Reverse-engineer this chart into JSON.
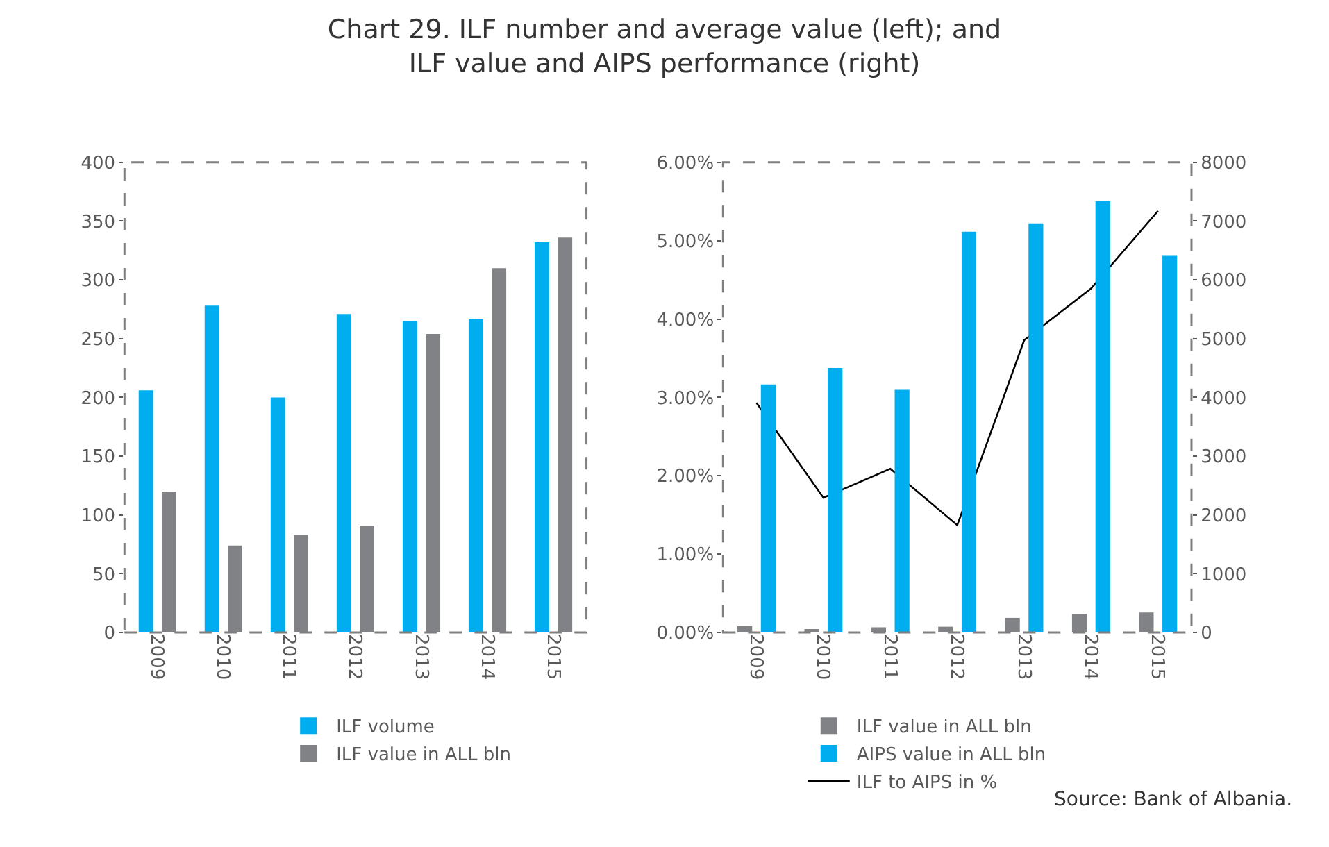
{
  "chart_data": [
    {
      "type": "bar",
      "title": "Chart 29. ILF number and average value (left); and\nILF value and AIPS performance (right)",
      "categories": [
        "2009",
        "2010",
        "2011",
        "2012",
        "2013",
        "2014",
        "2015"
      ],
      "series": [
        {
          "name": "ILF volume",
          "color": "#00aeef",
          "values": [
            206,
            278,
            200,
            271,
            265,
            267,
            332
          ]
        },
        {
          "name": "ILF value in ALL bln",
          "color": "#808285",
          "values": [
            120,
            74,
            83,
            91,
            254,
            310,
            336
          ]
        }
      ],
      "ylim": [
        0,
        400
      ],
      "yticks": [
        0,
        50,
        100,
        150,
        200,
        250,
        300,
        350,
        400
      ],
      "legend": "bottom"
    },
    {
      "type": "bar",
      "categories": [
        "2009",
        "2010",
        "2011",
        "2012",
        "2013",
        "2014",
        "2015"
      ],
      "series": [
        {
          "name": "ILF value in ALL bln",
          "color": "#808285",
          "axis": "y2",
          "values": [
            110,
            60,
            90,
            100,
            250,
            320,
            340
          ]
        },
        {
          "name": "AIPS value in ALL bln",
          "color": "#00aeef",
          "axis": "y2",
          "values": [
            4220,
            4500,
            4130,
            6820,
            6960,
            7340,
            6410
          ]
        },
        {
          "name": "ILF to AIPS in %",
          "type": "line",
          "color": "#000000",
          "values": [
            2.93,
            1.72,
            2.09,
            1.37,
            3.73,
            4.39,
            5.38
          ]
        }
      ],
      "ylim": [
        0,
        6
      ],
      "yticks": [
        {
          "value": 0,
          "label": "0.00%"
        },
        {
          "value": 1,
          "label": "1.00%"
        },
        {
          "value": 2,
          "label": "2.00%"
        },
        {
          "value": 3,
          "label": "3.00%"
        },
        {
          "value": 4,
          "label": "4.00%"
        },
        {
          "value": 5,
          "label": "5.00%"
        },
        {
          "value": 6,
          "label": "6.00%"
        }
      ],
      "y2lim": [
        0,
        8000
      ],
      "y2ticks": [
        0,
        1000,
        2000,
        3000,
        4000,
        5000,
        6000,
        7000,
        8000
      ],
      "legend": "bottom",
      "marker": "none",
      "line_style": "solid",
      "annotations": [
        "Source: Bank of Albania."
      ]
    }
  ]
}
